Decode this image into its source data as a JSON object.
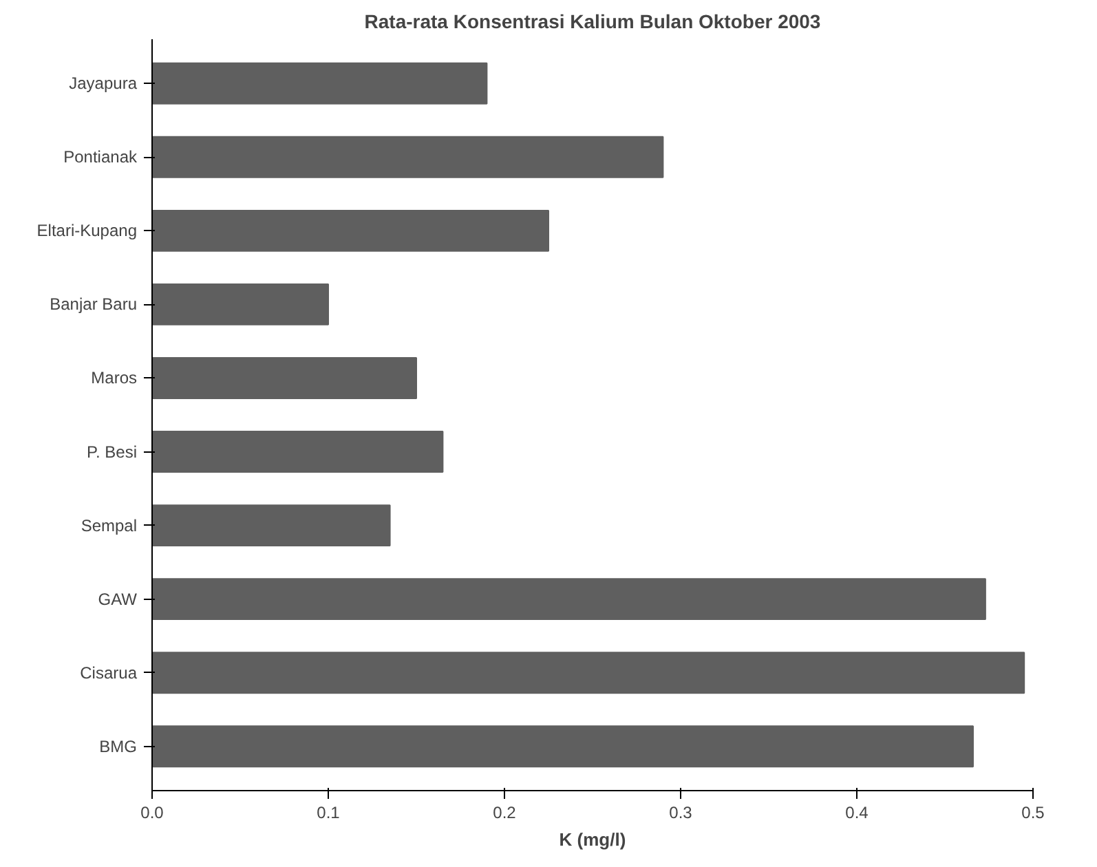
{
  "chart_data": {
    "type": "bar",
    "orientation": "horizontal",
    "title": "Rata-rata Konsentrasi Kalium Bulan Oktober 2003",
    "xlabel": "K (mg/l)",
    "categories": [
      "Jayapura",
      "Pontianak",
      "Eltari-Kupang",
      "Banjar Baru",
      "Maros",
      "P. Besi",
      "Sempal",
      "GAW",
      "Cisarua",
      "BMG"
    ],
    "values": [
      0.19,
      0.29,
      0.225,
      0.1,
      0.15,
      0.165,
      0.135,
      0.473,
      0.495,
      0.466
    ],
    "color": "#5f5f5f",
    "xlim": [
      0,
      0.5
    ],
    "xticks": [
      {
        "value": 0,
        "label": "0.0"
      },
      0.1,
      0.2,
      0.3,
      0.4,
      0.5
    ],
    "grid": false
  }
}
